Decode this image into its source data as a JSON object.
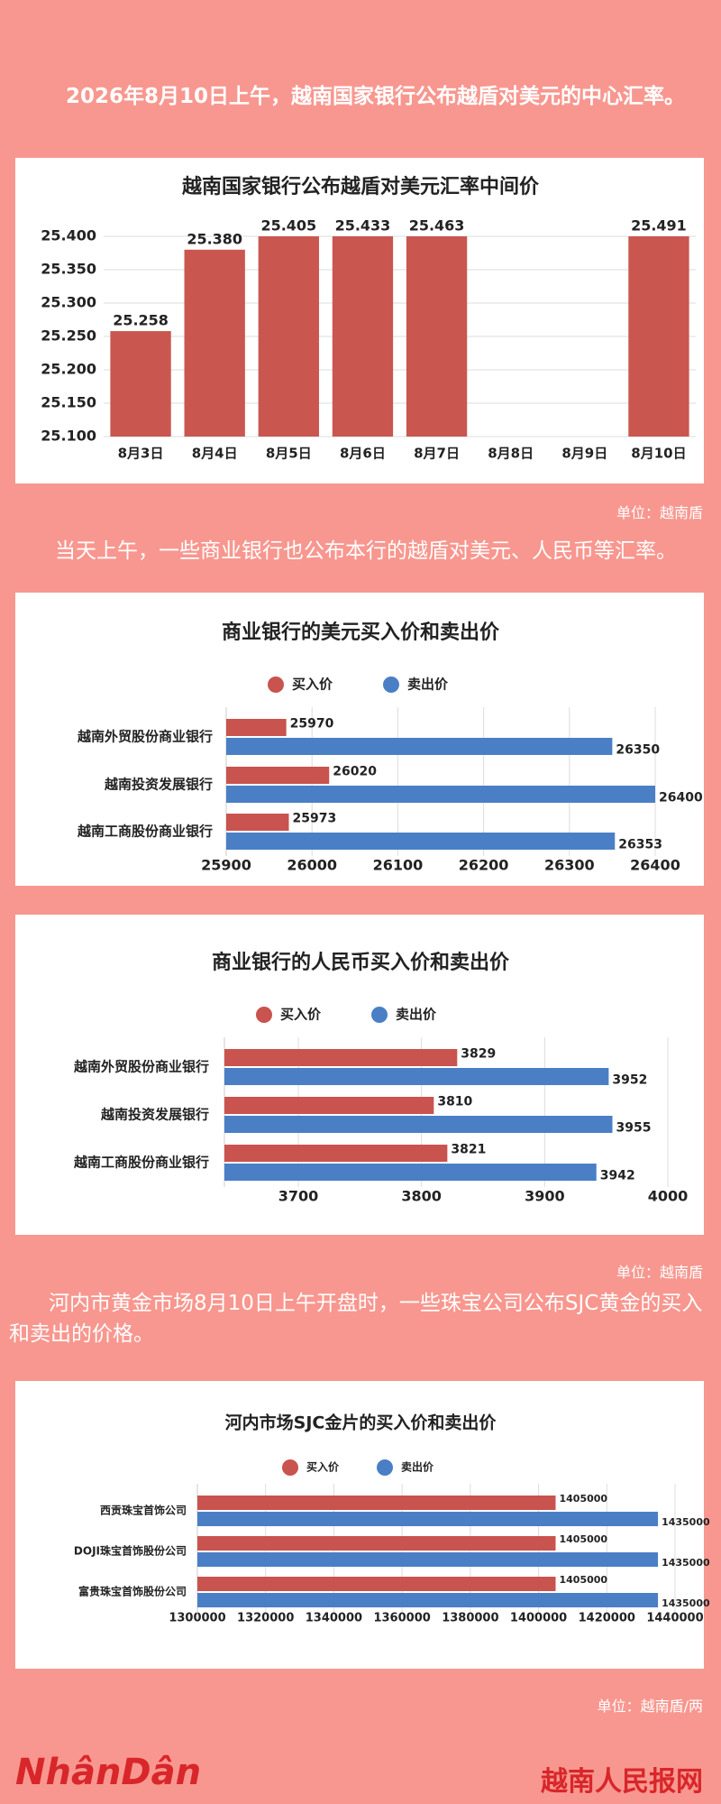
{
  "intro": "2026年8月10日上午，越南国家银行公布越盾对美元的中心汇率。",
  "unit_1": "单位：越南盾",
  "text_2": "当天上午，一些商业银行也公布本行的越盾对美元、人民币等汇率。",
  "unit_2": "单位：越南盾",
  "text_3": "河内市黄金市场8月10日上午开盘时，一些珠宝公司公布SJC黄金的买入和卖出的价格。",
  "unit_3": "单位：越南盾/两",
  "logo": "NhânDân",
  "site": "越南人民报网",
  "chart_data": [
    {
      "type": "bar",
      "title": "越南国家银行公布越盾对美元汇率中间价",
      "categories": [
        "8月3日",
        "8月4日",
        "8月5日",
        "8月6日",
        "8月7日",
        "8月8日",
        "8月9日",
        "8月10日"
      ],
      "values": [
        25.258,
        25.38,
        25.405,
        25.433,
        25.463,
        null,
        null,
        25.491
      ],
      "value_labels": [
        "25.258",
        "25.380",
        "25.405",
        "25.433",
        "25.463",
        null,
        null,
        "25.491"
      ],
      "color": "#c9574f",
      "ylim": [
        25.1,
        25.4
      ],
      "yticks": [
        {
          "value": 25.1,
          "label": "25.100"
        },
        {
          "value": 25.15,
          "label": "25.150"
        },
        {
          "value": 25.2,
          "label": "25.200"
        },
        {
          "value": 25.25,
          "label": "25.250"
        },
        {
          "value": 25.3,
          "label": "25.300"
        },
        {
          "value": 25.35,
          "label": "25.350"
        },
        {
          "value": 25.4,
          "label": "25.400"
        }
      ],
      "grid": true
    },
    {
      "type": "hbar",
      "title": "商业银行的美元买入价和卖出价",
      "categories": [
        "越南外贸股份商业银行",
        "越南投资发展银行",
        "越南工商股份商业银行"
      ],
      "series": [
        {
          "name": "买入价",
          "color": "#c9534e",
          "values": [
            25970,
            26020,
            25973
          ]
        },
        {
          "name": "卖出价",
          "color": "#4a7fc6",
          "values": [
            26350,
            26400,
            26353
          ]
        }
      ],
      "xlim": [
        25900,
        26400
      ],
      "xticks": [
        25900,
        26000,
        26100,
        26200,
        26300,
        26400
      ],
      "grid": true
    },
    {
      "type": "hbar",
      "title": "商业银行的人民币买入价和卖出价",
      "categories": [
        "越南外贸股份商业银行",
        "越南投资发展银行",
        "越南工商股份商业银行"
      ],
      "series": [
        {
          "name": "买入价",
          "color": "#c9534e",
          "values": [
            3829,
            3810,
            3821
          ]
        },
        {
          "name": "卖出价",
          "color": "#4a7fc6",
          "values": [
            3952,
            3955,
            3942
          ]
        }
      ],
      "xlim": [
        3640,
        4000
      ],
      "xticks": [
        3700,
        3800,
        3900,
        4000
      ],
      "grid": true
    },
    {
      "type": "hbar",
      "title": "河内市场SJC金片的买入价和卖出价",
      "categories": [
        "西贡珠宝首饰公司",
        "DOJI珠宝首饰股份公司",
        "富贵珠宝首饰股份公司"
      ],
      "series": [
        {
          "name": "买入价",
          "color": "#c9534e",
          "values": [
            1405000,
            1405000,
            1405000
          ]
        },
        {
          "name": "卖出价",
          "color": "#4a7fc6",
          "values": [
            1435000,
            1435000,
            1435000
          ]
        }
      ],
      "xlim": [
        1300000,
        1440000
      ],
      "xticks": [
        1300000,
        1320000,
        1340000,
        1360000,
        1380000,
        1400000,
        1420000,
        1440000
      ],
      "grid": true
    }
  ]
}
